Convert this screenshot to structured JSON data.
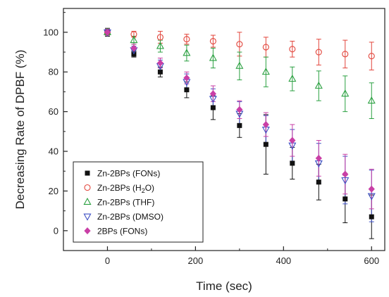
{
  "chart_data": {
    "type": "scatter",
    "xlabel": "Time (sec)",
    "ylabel": "Decreasing Rate of DPBF (%)",
    "xlim": [
      -100,
      630
    ],
    "ylim": [
      -10,
      112
    ],
    "xticks": [
      0,
      200,
      400,
      600
    ],
    "yticks": [
      0,
      20,
      40,
      60,
      80,
      100
    ],
    "grid": false,
    "legend_placement": "bottom-left",
    "x": [
      0,
      60,
      120,
      180,
      240,
      300,
      360,
      420,
      480,
      540,
      600
    ],
    "series": [
      {
        "name": "Zn-2BPs (FONs)",
        "legend_label": {
          "main": "Zn-2BPs (FONs)",
          "sub": "",
          "suffix": ""
        },
        "marker": "square-filled",
        "color": "#111111",
        "offset": 0,
        "values": [
          100,
          89,
          80,
          71,
          62,
          53,
          43.5,
          34,
          24.5,
          16,
          7
        ],
        "errors": [
          2,
          1.5,
          2.5,
          4,
          6,
          6,
          15,
          8,
          9,
          12,
          11
        ]
      },
      {
        "name": "Zn-2BPs (H2O)",
        "legend_label": {
          "main": "Zn-2BPs (H",
          "sub": "2",
          "suffix": "O)"
        },
        "marker": "circle-open",
        "color": "#e2443a",
        "offset": 0,
        "values": [
          100,
          99,
          97.5,
          96.5,
          95.5,
          94,
          92.5,
          91.5,
          90,
          89,
          88
        ],
        "errors": [
          1.5,
          1.5,
          3,
          2.5,
          3,
          6,
          5,
          4,
          6.5,
          7,
          7
        ]
      },
      {
        "name": "Zn-2BPs (THF)",
        "legend_label": {
          "main": "Zn-2BPs (THF)",
          "sub": "",
          "suffix": ""
        },
        "marker": "triangle-up-open",
        "color": "#2aa040",
        "offset": 0,
        "values": [
          100,
          96,
          93,
          89.5,
          87,
          83,
          80,
          76.5,
          73,
          69,
          65.5
        ],
        "errors": [
          1.5,
          2,
          3,
          4,
          5,
          7,
          7.5,
          6,
          7.5,
          9,
          9
        ]
      },
      {
        "name": "Zn-2BPs (DMSO)",
        "legend_label": {
          "main": "Zn-2BPs (DMSO)",
          "sub": "",
          "suffix": ""
        },
        "marker": "triangle-down-open",
        "color": "#3d4fc4",
        "offset": 0,
        "values": [
          100,
          91,
          83,
          75,
          66.5,
          59,
          51,
          43,
          34,
          25.5,
          17.5
        ],
        "errors": [
          1.5,
          2,
          3,
          4,
          5,
          6,
          7,
          8,
          10,
          12,
          13
        ]
      },
      {
        "name": "2BPs (FONs)",
        "legend_label": {
          "main": "2BPs (FONs)",
          "sub": "",
          "suffix": ""
        },
        "marker": "diamond-filled",
        "color": "#c93fa6",
        "offset": 0,
        "values": [
          100,
          92,
          84.5,
          77,
          69,
          61,
          53.5,
          45.5,
          36.5,
          28.5,
          21
        ],
        "errors": [
          1.5,
          2,
          2.5,
          3,
          4,
          4.5,
          6,
          8,
          9,
          10,
          10
        ]
      }
    ]
  }
}
